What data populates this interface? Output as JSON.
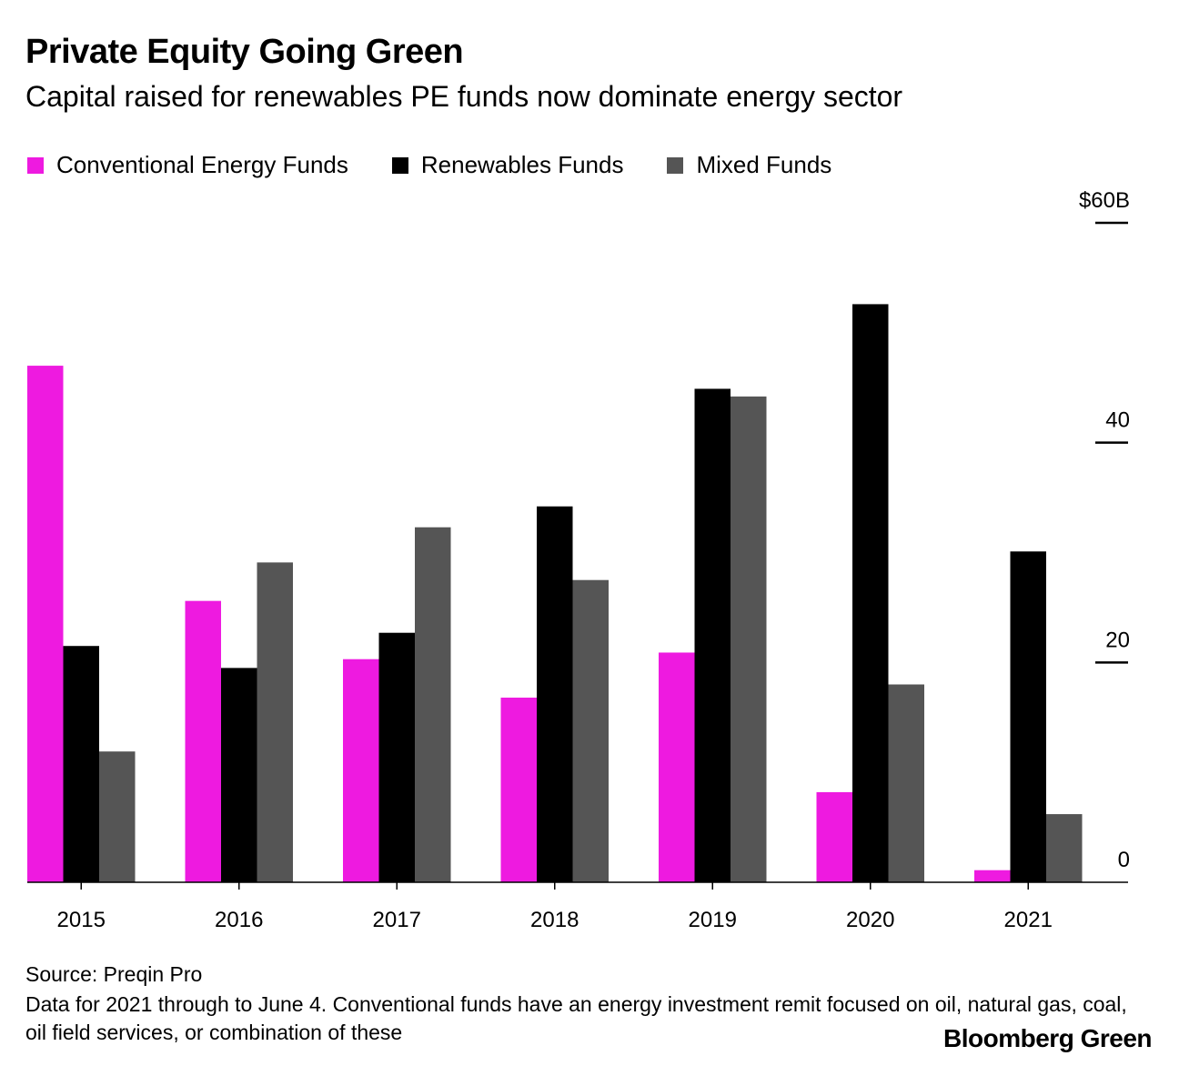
{
  "header": {
    "title": "Private Equity Going Green",
    "subtitle": "Capital raised for renewables PE funds now dominate energy sector"
  },
  "chart_data": {
    "type": "bar",
    "title": "Private Equity Going Green",
    "subtitle": "Capital raised for renewables PE funds now dominate energy sector",
    "xlabel": "",
    "ylabel": "",
    "categories": [
      "2015",
      "2016",
      "2017",
      "2018",
      "2019",
      "2020",
      "2021"
    ],
    "series": [
      {
        "name": "Conventional Energy Funds",
        "color": "#ee1ae0",
        "values": [
          47,
          25.6,
          20.3,
          16.8,
          20.9,
          8.2,
          1.1
        ]
      },
      {
        "name": "Renewables Funds",
        "color": "#000000",
        "values": [
          21.5,
          19.5,
          22.7,
          34.2,
          44.9,
          52.6,
          30.1
        ]
      },
      {
        "name": "Mixed Funds",
        "color": "#555555",
        "values": [
          11.9,
          29.1,
          32.3,
          27.5,
          44.2,
          18.0,
          6.2
        ]
      }
    ],
    "ylim": [
      0,
      60
    ],
    "yticks": [
      0,
      20,
      40,
      60
    ],
    "ytick_labels": [
      "0",
      "20",
      "40",
      "$60B"
    ],
    "y_axis_position": "right",
    "legend_position": "top-left",
    "grid": false
  },
  "footer": {
    "source": "Source: Preqin Pro",
    "note": "Data for 2021 through to June 4. Conventional funds have an energy investment remit focused on oil, natural gas, coal, oil field services, or combination of these",
    "brand": "Bloomberg Green"
  }
}
